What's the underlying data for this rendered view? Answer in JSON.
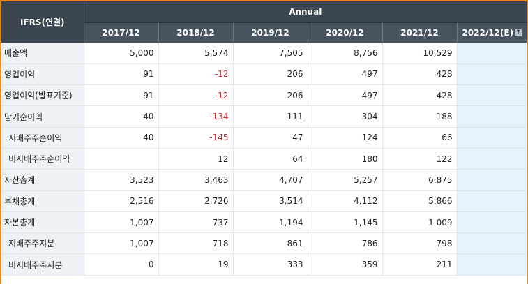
{
  "header": {
    "corner_label": "IFRS(연결)",
    "group_label": "Annual",
    "years": [
      "2017/12",
      "2018/12",
      "2019/12",
      "2020/12",
      "2021/12"
    ],
    "estimate_label": "2022/12(E)",
    "help_icon": "help-question-icon"
  },
  "colors": {
    "header_bg": "#3a4551",
    "negative": "#d2232a",
    "estimate_bg": "#e5f4fa",
    "frame": "#e58a23"
  },
  "rows": [
    {
      "label": "매출액",
      "sub": false,
      "values": [
        "5,000",
        "5,574",
        "7,505",
        "8,756",
        "10,529"
      ],
      "estimate": ""
    },
    {
      "label": "영업이익",
      "sub": false,
      "values": [
        "91",
        "-12",
        "206",
        "497",
        "428"
      ],
      "estimate": ""
    },
    {
      "label": "영업이익(발표기준)",
      "sub": false,
      "values": [
        "91",
        "-12",
        "206",
        "497",
        "428"
      ],
      "estimate": ""
    },
    {
      "label": "당기순이익",
      "sub": false,
      "values": [
        "40",
        "-134",
        "111",
        "304",
        "188"
      ],
      "estimate": ""
    },
    {
      "label": "지배주주순이익",
      "sub": true,
      "values": [
        "40",
        "-145",
        "47",
        "124",
        "66"
      ],
      "estimate": ""
    },
    {
      "label": "비지배주주순이익",
      "sub": true,
      "values": [
        "",
        "12",
        "64",
        "180",
        "122"
      ],
      "estimate": ""
    },
    {
      "label": "자산총계",
      "sub": false,
      "values": [
        "3,523",
        "3,463",
        "4,707",
        "5,257",
        "6,875"
      ],
      "estimate": ""
    },
    {
      "label": "부채총계",
      "sub": false,
      "values": [
        "2,516",
        "2,726",
        "3,514",
        "4,112",
        "5,866"
      ],
      "estimate": ""
    },
    {
      "label": "자본총계",
      "sub": false,
      "values": [
        "1,007",
        "737",
        "1,194",
        "1,145",
        "1,009"
      ],
      "estimate": ""
    },
    {
      "label": "지배주주지분",
      "sub": true,
      "values": [
        "1,007",
        "718",
        "861",
        "786",
        "798"
      ],
      "estimate": ""
    },
    {
      "label": "비지배주주지분",
      "sub": true,
      "values": [
        "0",
        "19",
        "333",
        "359",
        "211"
      ],
      "estimate": ""
    }
  ]
}
